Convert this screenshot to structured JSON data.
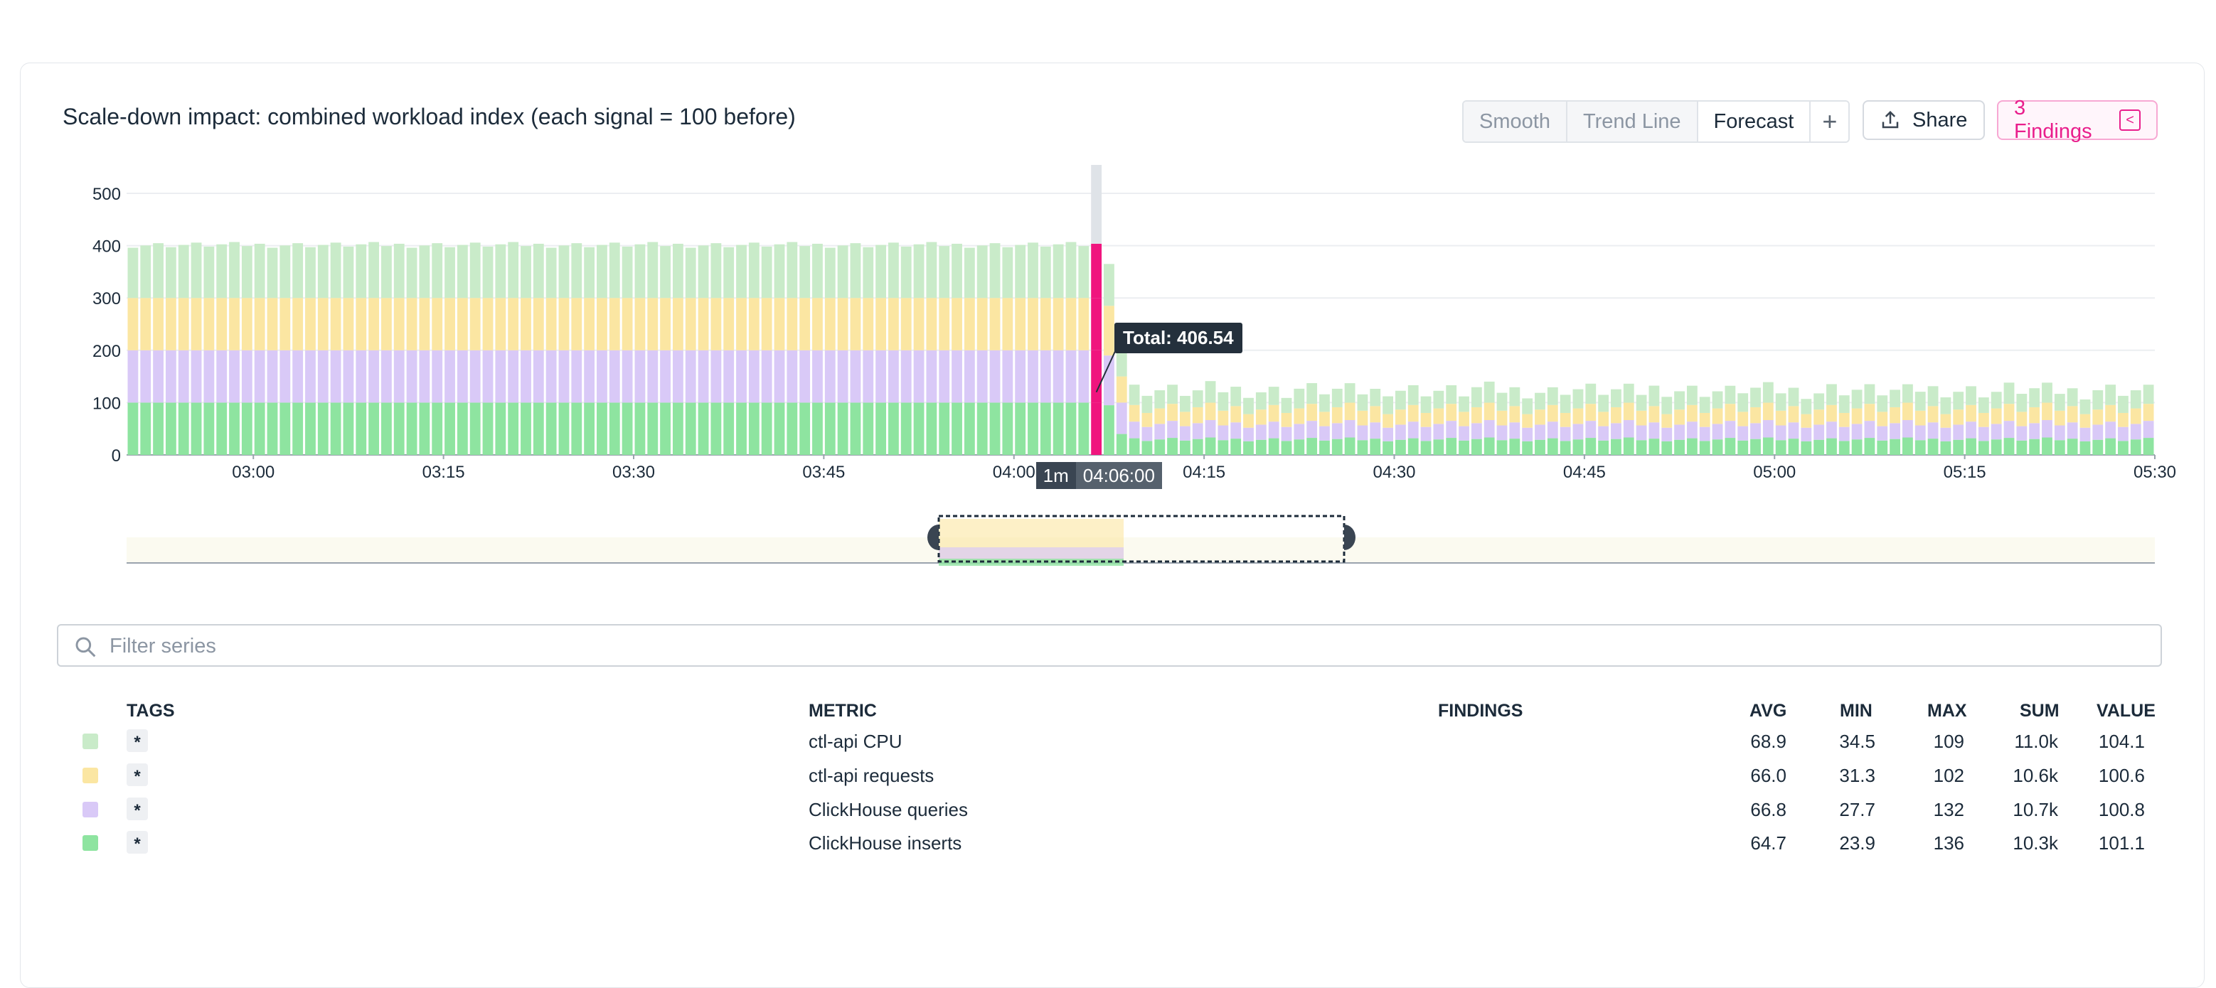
{
  "title": "Scale-down impact: combined workload index (each signal = 100 before)",
  "toolbar": {
    "smooth": "Smooth",
    "trend_line": "Trend Line",
    "forecast": "Forecast",
    "plus": "+",
    "share": "Share",
    "findings": "3 Findings"
  },
  "chart_data": {
    "type": "bar",
    "stacked": true,
    "y_ticks": [
      "0",
      "100",
      "200",
      "300",
      "400",
      "500"
    ],
    "ylim": [
      0,
      500
    ],
    "x_ticks": [
      "03:00",
      "03:15",
      "03:30",
      "03:45",
      "04:00",
      "04:15",
      "04:30",
      "04:45",
      "05:00",
      "05:15",
      "05:30"
    ],
    "x_range": [
      "02:50",
      "05:30"
    ],
    "bar_interval": "1m",
    "series": [
      {
        "name": "ClickHouse inserts",
        "color": "#8ee4a0",
        "before": 100,
        "after": 30
      },
      {
        "name": "ClickHouse queries",
        "color": "#d9c9f7",
        "before": 100,
        "after": 30
      },
      {
        "name": "ctl-api requests",
        "color": "#fbe6a2",
        "before": 100,
        "after": 30
      },
      {
        "name": "ctl-api CPU",
        "color": "#c9ebc9",
        "before": 100,
        "after": 32
      }
    ],
    "highlight": {
      "time": "04:06:00",
      "total": 406.54,
      "color": "#f0157e"
    },
    "tooltip": "Total: 406.54",
    "x_highlight_interval": "1m",
    "x_highlight_time": "04:06:00"
  },
  "filter": {
    "placeholder": "Filter series"
  },
  "legend": {
    "headers": {
      "tags": "TAGS",
      "metric": "METRIC",
      "findings": "FINDINGS",
      "avg": "AVG",
      "min": "MIN",
      "max": "MAX",
      "sum": "SUM",
      "value": "VALUE"
    },
    "rows": [
      {
        "color": "#c9ebc9",
        "tag": "*",
        "metric": "ctl-api CPU",
        "avg": "68.9",
        "min": "34.5",
        "max": "109",
        "sum": "11.0k",
        "value": "104.1"
      },
      {
        "color": "#fbe6a2",
        "tag": "*",
        "metric": "ctl-api requests",
        "avg": "66.0",
        "min": "31.3",
        "max": "102",
        "sum": "10.6k",
        "value": "100.6"
      },
      {
        "color": "#d9c9f7",
        "tag": "*",
        "metric": "ClickHouse queries",
        "avg": "66.8",
        "min": "27.7",
        "max": "132",
        "sum": "10.7k",
        "value": "100.8"
      },
      {
        "color": "#8ee4a0",
        "tag": "*",
        "metric": "ClickHouse inserts",
        "avg": "64.7",
        "min": "23.9",
        "max": "136",
        "sum": "10.3k",
        "value": "101.1"
      }
    ]
  }
}
